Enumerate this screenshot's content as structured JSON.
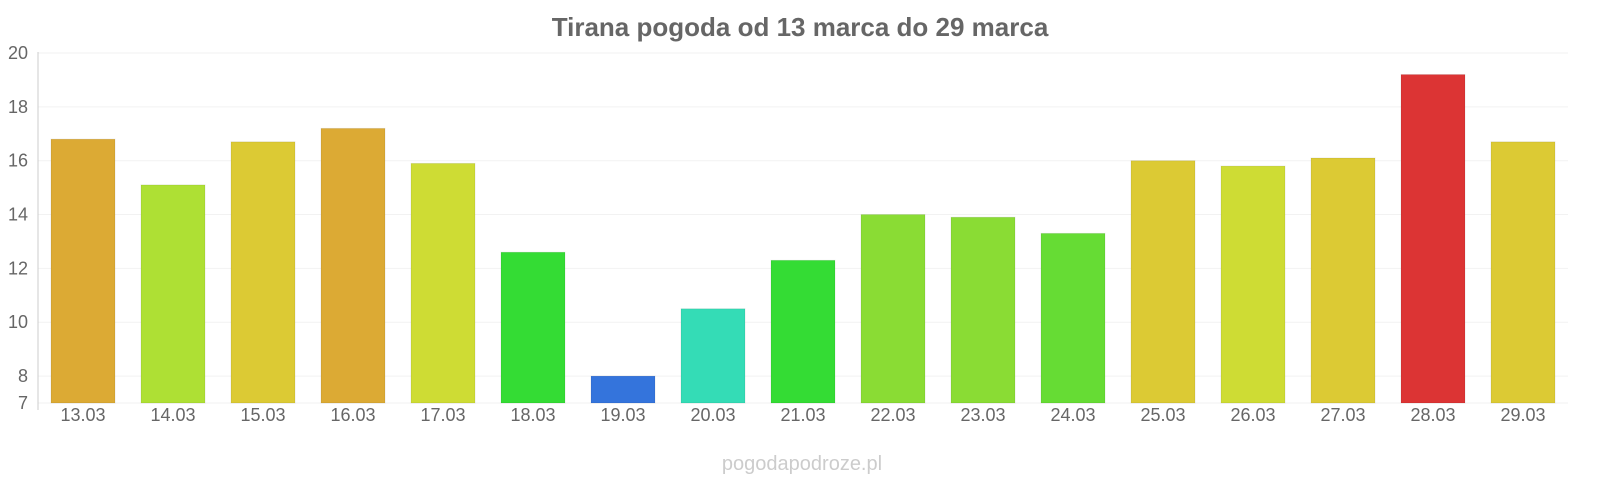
{
  "chart_data": {
    "type": "bar",
    "title": "Tirana pogoda od 13 marca do 29 marca",
    "xlabel": "",
    "ylabel": "",
    "ylim": [
      7,
      20
    ],
    "y_ticks": [
      7,
      8,
      10,
      12,
      14,
      16,
      18,
      20
    ],
    "grid": true,
    "categories": [
      "13.03",
      "14.03",
      "15.03",
      "16.03",
      "17.03",
      "18.03",
      "19.03",
      "20.03",
      "21.03",
      "22.03",
      "23.03",
      "24.03",
      "25.03",
      "26.03",
      "27.03",
      "28.03",
      "29.03"
    ],
    "values": [
      16.8,
      15.1,
      16.7,
      17.2,
      15.9,
      12.6,
      8.0,
      10.5,
      12.3,
      14.0,
      13.9,
      13.3,
      16.0,
      15.8,
      16.1,
      19.2,
      16.7
    ],
    "colors": [
      "#dcaa34",
      "#aee034",
      "#dcca34",
      "#dcaa34",
      "#cedc34",
      "#34dc34",
      "#3474dc",
      "#34dcb6",
      "#34dc34",
      "#8adc34",
      "#8adc34",
      "#66dc34",
      "#dcca34",
      "#cedc34",
      "#dcca34",
      "#dc3434",
      "#dcca34"
    ]
  },
  "footer": {
    "credit": "pogodapodroze.pl"
  }
}
